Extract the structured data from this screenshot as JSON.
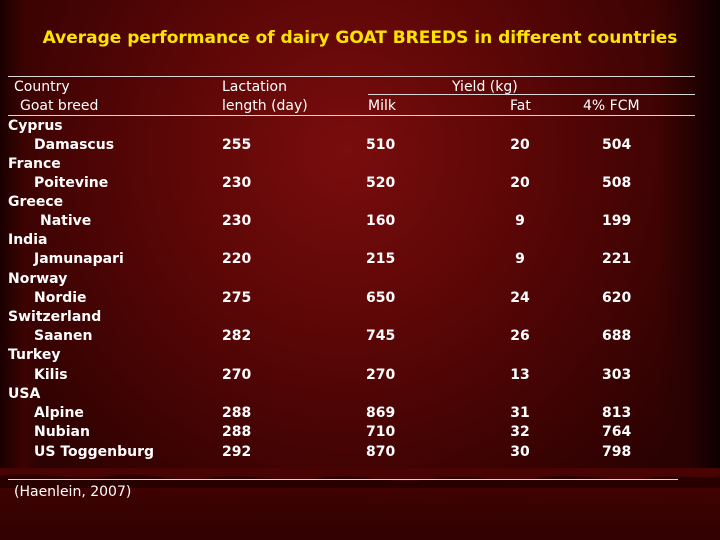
{
  "title": "Average performance of dairy GOAT BREEDS in different countries",
  "header": {
    "country": "Country",
    "goat_breed": "Goat breed",
    "lactation_line1": "Lactation",
    "lactation_line2": "length (day)",
    "yield_group": "Yield (kg)",
    "milk": "Milk",
    "fat": "Fat",
    "fcm": "4% FCM"
  },
  "rows": [
    {
      "country": "Cyprus",
      "breed": "Damascus",
      "lactation": "255",
      "milk": "510",
      "fat": "20",
      "fcm": "504"
    },
    {
      "country": "France",
      "breed": "Poitevine",
      "lactation": "230",
      "milk": "520",
      "fat": "20",
      "fcm": "508"
    },
    {
      "country": "Greece",
      "breed": "Native",
      "lactation": "230",
      "milk": "160",
      "fat": "9",
      "fcm": "199"
    },
    {
      "country": "India",
      "breed": "Jamunapari",
      "lactation": "220",
      "milk": "215",
      "fat": "9",
      "fcm": "221"
    },
    {
      "country": "Norway",
      "breed": "Nordie",
      "lactation": "275",
      "milk": "650",
      "fat": "24",
      "fcm": "620"
    },
    {
      "country": "Switzerland",
      "breed": "Saanen",
      "lactation": "282",
      "milk": "745",
      "fat": "26",
      "fcm": "688"
    },
    {
      "country": "Turkey",
      "breed": "Kilis",
      "lactation": "270",
      "milk": "270",
      "fat": "13",
      "fcm": "303"
    },
    {
      "country": "USA",
      "breed": "Alpine",
      "lactation": "288",
      "milk": "869",
      "fat": "31",
      "fcm": "813"
    },
    {
      "country": "",
      "breed": "Nubian",
      "lactation": "288",
      "milk": "710",
      "fat": "32",
      "fcm": "764"
    },
    {
      "country": "",
      "breed": "US Toggenburg",
      "lactation": "292",
      "milk": "870",
      "fat": "30",
      "fcm": "798"
    }
  ],
  "source": "(Haenlein, 2007)",
  "colors": {
    "title": "#ffe400",
    "text": "#ffffff",
    "background": "#5a0606"
  }
}
